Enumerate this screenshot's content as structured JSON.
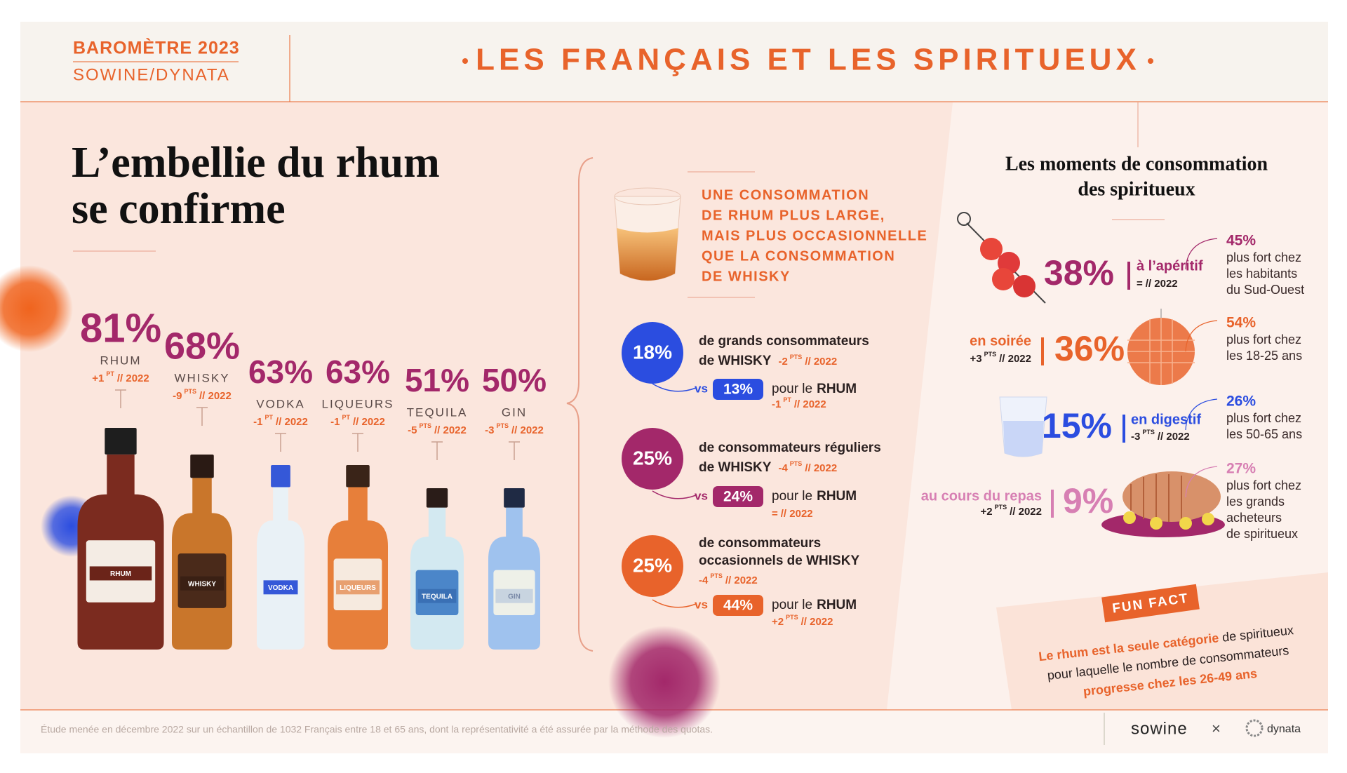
{
  "header": {
    "barometre": "BAROMÈTRE 2023",
    "source": "SOWINE/DYNATA",
    "title": "LES FRANÇAIS ET LES SPIRITUEUX"
  },
  "headline": [
    "L’embellie du rhum",
    "se confirme"
  ],
  "spirits": [
    {
      "pct": "81%",
      "name": "RHUM",
      "change": {
        "delta": "+1",
        "unit": "PT",
        "ref": "// 2022"
      }
    },
    {
      "pct": "68%",
      "name": "WHISKY",
      "change": {
        "delta": "-9",
        "unit": "PTS",
        "ref": "// 2022"
      }
    },
    {
      "pct": "63%",
      "name": "VODKA",
      "change": {
        "delta": "-1",
        "unit": "PT",
        "ref": "// 2022"
      }
    },
    {
      "pct": "63%",
      "name": "LIQUEURS",
      "change": {
        "delta": "-1",
        "unit": "PT",
        "ref": "// 2022"
      }
    },
    {
      "pct": "51%",
      "name": "TEQUILA",
      "change": {
        "delta": "-5",
        "unit": "PTS",
        "ref": "// 2022"
      }
    },
    {
      "pct": "50%",
      "name": "GIN",
      "change": {
        "delta": "-3",
        "unit": "PTS",
        "ref": "// 2022"
      }
    }
  ],
  "rum_summary": [
    "UNE CONSOMMATION",
    "DE RHUM PLUS LARGE,",
    "MAIS PLUS OCCASIONNELLE",
    "QUE LA CONSOMMATION",
    "DE WHISKY"
  ],
  "comparisons": [
    {
      "pct": "18%",
      "lines": [
        "de grands consommateurs",
        "de WHISKY"
      ],
      "change": {
        "delta": "-2",
        "unit": "PTS",
        "ref": "// 2022"
      },
      "vs": "vs",
      "rum": {
        "pct": "13%",
        "text": "pour le",
        "name": "RHUM",
        "change": {
          "delta": "-1",
          "unit": "PT",
          "ref": "// 2022"
        }
      }
    },
    {
      "pct": "25%",
      "lines": [
        "de consommateurs réguliers",
        "de WHISKY"
      ],
      "change": {
        "delta": "-4",
        "unit": "PTS",
        "ref": "// 2022"
      },
      "vs": "vs",
      "rum": {
        "pct": "24%",
        "text": "pour le",
        "name": "RHUM",
        "change": {
          "delta": "=",
          "ref": "// 2022"
        }
      }
    },
    {
      "pct": "25%",
      "lines": [
        "de consommateurs",
        "occasionnels de WHISKY"
      ],
      "change": {
        "delta": "-4",
        "unit": "PTS",
        "ref": "// 2022"
      },
      "vs": "vs",
      "rum": {
        "pct": "44%",
        "text": "pour le",
        "name": "RHUM",
        "change": {
          "delta": "+2",
          "unit": "PTS",
          "ref": "// 2022"
        }
      }
    }
  ],
  "moments": {
    "title": [
      "Les moments de consommation",
      "des spiritueux"
    ],
    "items": [
      {
        "pct": "38%",
        "label": "à l’apéritif",
        "change": {
          "delta": "=",
          "ref": "// 2022"
        },
        "highlight": {
          "pct": "45%",
          "lines": [
            "plus fort chez",
            "les habitants",
            "du Sud-Ouest"
          ]
        }
      },
      {
        "pct": "36%",
        "label": "en soirée",
        "change": {
          "delta": "+3",
          "unit": "PTS",
          "ref": "// 2022"
        },
        "highlight": {
          "pct": "54%",
          "lines": [
            "plus fort chez",
            "les 18-25 ans"
          ]
        }
      },
      {
        "pct": "15%",
        "label": "en digestif",
        "change": {
          "delta": "-3",
          "unit": "PTS",
          "ref": "// 2022"
        },
        "highlight": {
          "pct": "26%",
          "lines": [
            "plus fort chez",
            "les 50-65 ans"
          ]
        }
      },
      {
        "pct": "9%",
        "label": "au cours du repas",
        "change": {
          "delta": "+2",
          "unit": "PTS",
          "ref": "// 2022"
        },
        "highlight": {
          "pct": "27%",
          "lines": [
            "plus fort chez",
            "les grands",
            "acheteurs",
            "de spiritueux"
          ]
        }
      }
    ]
  },
  "fun_fact": {
    "tag": "FUN FACT",
    "lines": [
      [
        "Le rhum est la seule catégorie",
        " de spiritueux"
      ],
      [
        "pour laquelle le nombre de consommateurs"
      ],
      [
        "progresse chez les 26-49 ans"
      ]
    ]
  },
  "footer": {
    "note": "Étude menée en décembre 2022 sur un échantillon de 1032 Français entre 18 et 65 ans, dont la représentativité a été assurée par la méthode des quotas.",
    "brand1": "sowine",
    "separator": "×",
    "brand2": "dynata"
  }
}
